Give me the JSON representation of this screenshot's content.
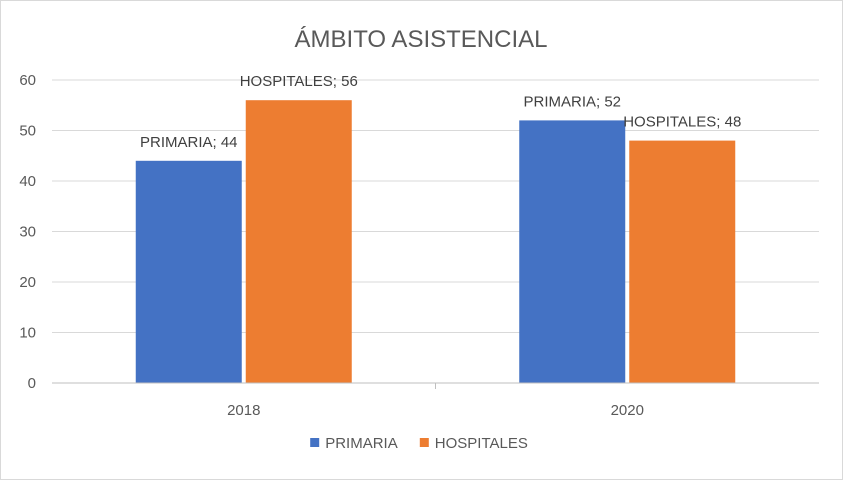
{
  "chart_data": {
    "type": "bar",
    "title": "ÁMBITO ASISTENCIAL",
    "categories": [
      "2018",
      "2020"
    ],
    "series": [
      {
        "name": "PRIMARIA",
        "values": [
          44,
          52
        ],
        "color": "#4472c4",
        "labels": [
          "PRIMARIA; 44",
          "PRIMARIA; 52"
        ]
      },
      {
        "name": "HOSPITALES",
        "values": [
          56,
          48
        ],
        "color": "#ed7d31",
        "labels": [
          "HOSPITALES; 56",
          "HOSPITALES; 48"
        ]
      }
    ],
    "ylim": [
      0,
      60
    ],
    "yticks": [
      0,
      10,
      20,
      30,
      40,
      50,
      60
    ],
    "grid": true,
    "legend": "bottom"
  }
}
